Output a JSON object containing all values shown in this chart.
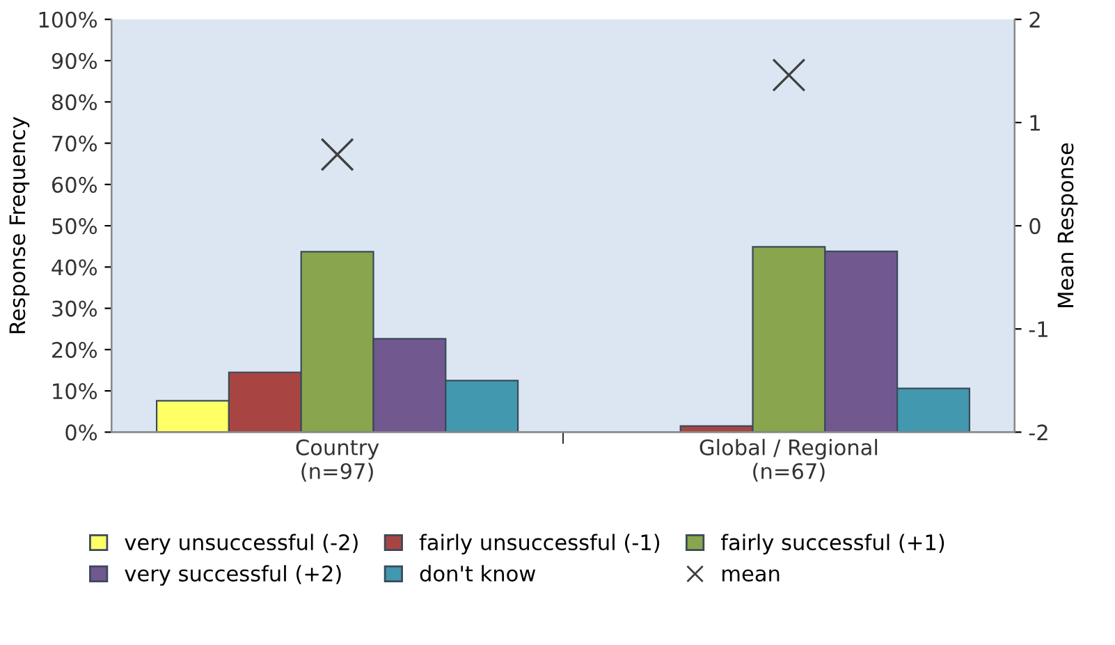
{
  "chart_data": {
    "type": "bar",
    "categories": [
      "Country\n(n=97)",
      "Global / Regional\n(n=67)"
    ],
    "ylabel": "Response Frequency",
    "y2label": "Mean Response",
    "ylim": [
      0,
      1
    ],
    "yticks": [
      {
        "value": 0,
        "label": "0%"
      },
      {
        "value": 0.1,
        "label": "10%"
      },
      {
        "value": 0.2,
        "label": "20%"
      },
      {
        "value": 0.3,
        "label": "30%"
      },
      {
        "value": 0.4,
        "label": "40%"
      },
      {
        "value": 0.5,
        "label": "50%"
      },
      {
        "value": 0.6,
        "label": "60%"
      },
      {
        "value": 0.7,
        "label": "70%"
      },
      {
        "value": 0.8,
        "label": "80%"
      },
      {
        "value": 0.9,
        "label": "90%"
      },
      {
        "value": 1,
        "label": "100%"
      }
    ],
    "y2lim": [
      -2,
      2
    ],
    "y2ticks": [
      -2,
      -1,
      0,
      1,
      2
    ],
    "grid": false,
    "legend": "bottom",
    "series": [
      {
        "name": "very unsuccessful (-2)",
        "color": "#ffff66",
        "values": [
          0.076,
          null
        ]
      },
      {
        "name": "fairly unsuccessful (-1)",
        "color": "#a84542",
        "values": [
          0.145,
          0.015
        ]
      },
      {
        "name": "fairly successful (+1)",
        "color": "#89a54e",
        "values": [
          0.437,
          0.449
        ]
      },
      {
        "name": "very successful (+2)",
        "color": "#71588f",
        "values": [
          0.226,
          0.438
        ]
      },
      {
        "name": "don't know",
        "color": "#4198af",
        "values": [
          0.125,
          0.106
        ]
      },
      {
        "name": "mean",
        "type": "scatter",
        "axis": "y2",
        "marker": "cross",
        "color": "#404040",
        "x": [
          "Country\n(n=97)",
          "Global / Regional\n(n=67)"
        ],
        "values": [
          0.69,
          1.46
        ]
      }
    ]
  }
}
